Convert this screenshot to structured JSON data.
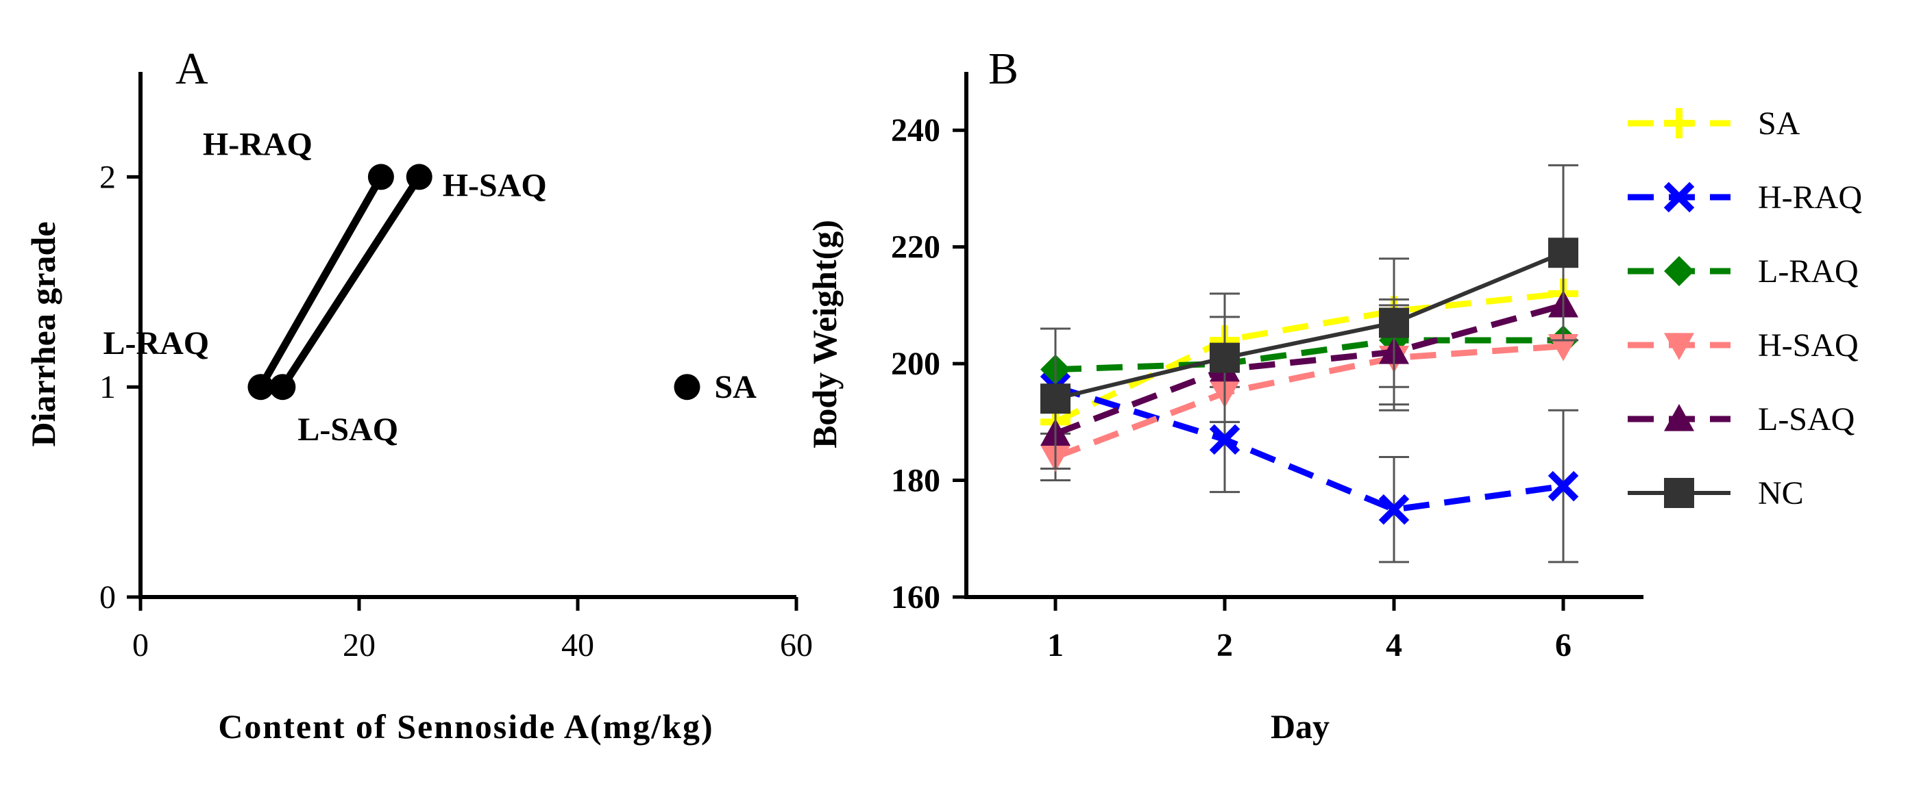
{
  "panels": {
    "A": {
      "label": "A"
    },
    "B": {
      "label": "B"
    }
  },
  "chart_data": [
    {
      "panel": "A",
      "type": "scatter",
      "title": "",
      "xlabel": "Content of Sennoside A(mg/kg)",
      "ylabel": "Diarrhea grade",
      "xlim": [
        0,
        60
      ],
      "ylim": [
        0,
        2.5
      ],
      "xticks": [
        0,
        20,
        40,
        60
      ],
      "yticks": [
        0,
        1,
        2
      ],
      "points": [
        {
          "name": "L-RAQ",
          "x": 11,
          "y": 1
        },
        {
          "name": "H-RAQ",
          "x": 22,
          "y": 2
        },
        {
          "name": "L-SAQ",
          "x": 13,
          "y": 1
        },
        {
          "name": "H-SAQ",
          "x": 25.5,
          "y": 2
        },
        {
          "name": "SA",
          "x": 50,
          "y": 1
        }
      ],
      "lines": [
        {
          "from": "L-RAQ",
          "to": "H-RAQ"
        },
        {
          "from": "L-SAQ",
          "to": "H-SAQ"
        }
      ],
      "marker_color": "#000000"
    },
    {
      "panel": "B",
      "type": "line",
      "title": "",
      "xlabel": "Day",
      "ylabel": "Body Weight(g)",
      "categories": [
        "1",
        "2",
        "4",
        "6"
      ],
      "ylim": [
        160,
        250
      ],
      "yticks": [
        160,
        180,
        200,
        220,
        240
      ],
      "legend_position": "right",
      "series": [
        {
          "name": "SA",
          "values": [
            190,
            204,
            209,
            212
          ],
          "errors": [
            0,
            0,
            0,
            0
          ],
          "color": "#ffff00",
          "marker": "plus",
          "dashed": true
        },
        {
          "name": "H-RAQ",
          "values": [
            196,
            187,
            175,
            179
          ],
          "errors": [
            0,
            9,
            9,
            13
          ],
          "color": "#0000ff",
          "marker": "cross",
          "dashed": true
        },
        {
          "name": "L-RAQ",
          "values": [
            199,
            200,
            204,
            204
          ],
          "errors": [
            0,
            0,
            0,
            0
          ],
          "color": "#008000",
          "marker": "diamond",
          "dashed": true
        },
        {
          "name": "H-SAQ",
          "values": [
            184,
            195,
            201,
            203
          ],
          "errors": [
            4,
            0,
            9,
            0
          ],
          "color": "#ff7f7f",
          "marker": "triangle-down",
          "dashed": true
        },
        {
          "name": "L-SAQ",
          "values": [
            188,
            199,
            202,
            210
          ],
          "errors": [
            0,
            9,
            9,
            0
          ],
          "color": "#5a0050",
          "marker": "triangle-up",
          "dashed": true
        },
        {
          "name": "NC",
          "values": [
            194,
            201,
            207,
            219
          ],
          "errors": [
            12,
            11,
            11,
            15
          ],
          "color": "#333333",
          "marker": "square",
          "dashed": false
        }
      ]
    }
  ]
}
